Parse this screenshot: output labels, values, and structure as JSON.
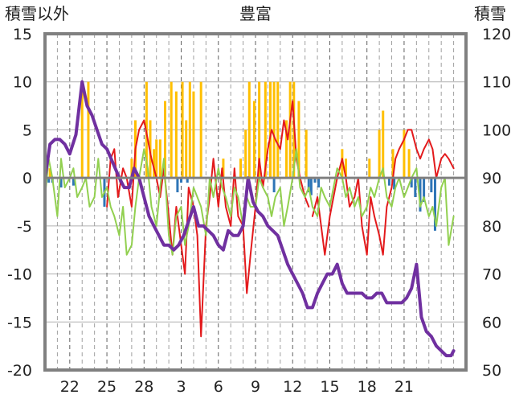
{
  "chart_data": {
    "type": "line",
    "title": "豊富",
    "left_axis_label": "積雪以外",
    "right_axis_label": "積雪",
    "left_axis": {
      "range": [
        -20,
        15
      ],
      "ticks": [
        "15",
        "10",
        "5",
        "0",
        "-5",
        "-10",
        "-15",
        "-20"
      ]
    },
    "right_axis": {
      "range": [
        50,
        120
      ],
      "ticks": [
        "120",
        "110",
        "100",
        "90",
        "80",
        "70",
        "60",
        "50"
      ]
    },
    "x_range": [
      20,
      54
    ],
    "x_ticks": [
      {
        "x": 22,
        "label": "22"
      },
      {
        "x": 25,
        "label": "25"
      },
      {
        "x": 28,
        "label": "28"
      },
      {
        "x": 31,
        "label": "3"
      },
      {
        "x": 34,
        "label": "6"
      },
      {
        "x": 37,
        "label": "9"
      },
      {
        "x": 40,
        "label": "12"
      },
      {
        "x": 43,
        "label": "15"
      },
      {
        "x": 46,
        "label": "18"
      },
      {
        "x": 49,
        "label": "21"
      }
    ],
    "x_grid_minor": [
      21,
      23,
      24,
      26,
      27,
      29,
      30,
      32,
      33,
      35,
      36,
      38,
      39,
      41,
      42,
      44,
      45,
      47,
      48,
      50,
      51,
      52,
      53
    ],
    "x_grid_major": [
      22,
      25,
      28,
      31,
      34,
      37,
      40,
      43,
      46,
      49
    ],
    "grid": true,
    "colors": {
      "snowfall": "#ffbf00",
      "precip": "#2e75b6",
      "max_temp": "#e31a1c",
      "min_temp": "#92d050",
      "snow_depth": "#7030a0",
      "zero_line": "#808080",
      "frame": "#808080"
    },
    "series": [
      {
        "key": "snowfall",
        "kind": "bars",
        "axis": "left",
        "x": [
          20.4,
          23.0,
          23.5,
          27.0,
          27.3,
          28.2,
          28.5,
          28.8,
          29.0,
          29.3,
          29.7,
          30.2,
          30.6,
          31.1,
          31.4,
          31.7,
          32.0,
          32.6,
          34.4,
          35.8,
          36.2,
          36.5,
          36.9,
          37.3,
          37.8,
          38.2,
          38.5,
          38.8,
          39.5,
          39.8,
          40.1,
          40.5,
          41.1,
          44.0,
          44.3,
          46.2,
          47.0,
          47.3,
          48.1,
          49.0,
          49.4
        ],
        "values": [
          1,
          10,
          10,
          2,
          6,
          10,
          6,
          3,
          4,
          4,
          8,
          10,
          9,
          10,
          6,
          10,
          9,
          10,
          2,
          2,
          5,
          10,
          8,
          10,
          10,
          10,
          10,
          10,
          6,
          10,
          10,
          8,
          5,
          3,
          2,
          2,
          5,
          7,
          3,
          5,
          3
        ]
      },
      {
        "key": "precip",
        "kind": "bars",
        "axis": "left",
        "x": [
          20.3,
          20.6,
          21.3,
          22.3,
          24.8,
          30.7,
          31.0,
          31.5,
          38.5,
          41.3,
          41.5,
          41.8,
          42.1,
          47.8,
          48.2,
          49.6,
          49.9,
          50.3,
          50.6,
          51.2,
          51.5
        ],
        "values": [
          -0.5,
          -0.5,
          -1.0,
          -0.8,
          -3.0,
          -1.5,
          -0.5,
          -0.5,
          -1.5,
          -1.5,
          -1.8,
          -0.5,
          -1.0,
          -0.8,
          -1.2,
          -1.0,
          -2.0,
          -3.5,
          -2.5,
          -1.5,
          -5.5
        ]
      },
      {
        "key": "max_temp",
        "kind": "line",
        "axis": "left",
        "x": [
          25.0,
          25.3,
          25.6,
          25.9,
          26.3,
          26.6,
          27.0,
          27.3,
          27.6,
          28.0,
          28.3,
          28.6,
          29.0,
          29.3,
          29.6,
          30.0,
          30.3,
          30.6,
          31.0,
          31.3,
          31.6,
          32.0,
          32.3,
          32.6,
          33.0,
          33.3,
          33.6,
          34.0,
          34.3,
          34.6,
          35.0,
          35.3,
          35.6,
          36.0,
          36.3,
          36.6,
          37.0,
          37.3,
          37.6,
          38.0,
          38.3,
          38.6,
          39.0,
          39.3,
          39.6,
          40.0,
          40.3,
          40.6,
          41.0,
          41.3,
          41.6,
          42.0,
          42.3,
          42.6,
          43.0,
          43.3,
          43.6,
          44.0,
          44.3,
          44.6,
          45.0,
          45.3,
          45.6,
          46.0,
          46.3,
          46.6,
          47.0,
          47.3,
          47.6,
          48.0,
          48.3,
          48.6,
          49.0,
          49.3,
          49.6,
          50.0,
          50.3,
          50.6,
          51.0,
          51.3,
          51.6,
          52.0,
          52.3,
          52.6,
          53.0
        ],
        "values": [
          -3,
          2,
          3,
          -2,
          1,
          0,
          -3,
          3,
          5,
          6,
          4,
          2,
          0,
          -2,
          1,
          -4,
          -8,
          -3,
          -7,
          -10,
          -1,
          -3,
          -6,
          -16.5,
          -5,
          -2,
          2,
          -3,
          1,
          -3,
          -5,
          1,
          -4,
          -5,
          -12,
          -8,
          -3,
          2,
          -1,
          3,
          5,
          4,
          3,
          6,
          4,
          8,
          2,
          0,
          -2,
          -3,
          -4,
          -2,
          -5,
          -8,
          -4,
          -2,
          0,
          2,
          0,
          -3,
          -2,
          0,
          -5,
          -8,
          -2,
          -4,
          -6,
          -8,
          -3,
          -1,
          2,
          3,
          4,
          5,
          5,
          3,
          2,
          3,
          4,
          3,
          0,
          2,
          2.5,
          2,
          1
        ],
        "gaps_after_index": [
          49
        ]
      },
      {
        "key": "min_temp",
        "kind": "line",
        "axis": "left",
        "x": [
          20.0,
          20.3,
          20.6,
          21.0,
          21.3,
          21.6,
          22.0,
          22.3,
          22.6,
          23.0,
          23.3,
          23.6,
          24.0,
          24.3,
          24.6,
          25.0,
          25.3,
          25.6,
          26.0,
          26.3,
          26.6,
          27.0,
          27.3,
          27.6,
          28.0,
          28.3,
          28.6,
          29.0,
          29.3,
          29.6,
          30.0,
          30.3,
          30.6,
          31.0,
          31.3,
          31.6,
          32.0,
          32.3,
          32.6,
          33.0,
          33.3,
          33.6,
          34.0,
          34.3,
          34.6,
          35.0,
          35.3,
          35.6,
          36.0,
          36.3,
          36.6,
          37.0,
          37.3,
          37.6,
          38.0,
          38.3,
          38.6,
          39.0,
          39.3,
          39.6,
          40.0,
          40.3,
          40.6,
          41.0,
          41.3,
          41.6,
          42.0,
          42.3,
          42.6,
          43.0,
          43.3,
          43.6,
          44.0,
          44.3,
          44.6,
          45.0,
          45.3,
          45.6,
          46.0,
          46.3,
          46.6,
          47.0,
          47.3,
          47.6,
          48.0,
          48.3,
          48.6,
          49.0,
          49.3,
          49.6,
          50.0,
          50.3,
          50.6,
          51.0,
          51.3,
          51.6,
          52.0,
          52.3,
          52.6,
          53.0
        ],
        "values": [
          -2,
          2,
          0,
          -4,
          2,
          -1,
          0,
          1,
          -2,
          -1,
          0,
          -3,
          -2,
          2,
          -2,
          -1,
          -3,
          -4,
          -6,
          -3,
          -8,
          -7,
          -3,
          0,
          3,
          1,
          -3,
          -5,
          -1,
          2,
          -6,
          -8,
          -4,
          -3,
          -7,
          -5,
          -1,
          -2,
          -3,
          -6,
          0,
          -2,
          1,
          -1,
          -2,
          -4,
          -1,
          -2,
          -5,
          -2,
          -3,
          -3,
          0,
          -1,
          -2,
          -4,
          -2,
          -1,
          -5,
          -3,
          0,
          3,
          -1,
          -2,
          -1,
          -3,
          -4,
          -1,
          -2,
          -3,
          -1,
          1,
          0,
          -2,
          -1,
          -3,
          -2,
          -4,
          -3,
          -1,
          -2,
          0,
          1,
          -2,
          -3,
          -1,
          0,
          -2,
          -1,
          0,
          1,
          -3,
          -2,
          -4,
          -3,
          -5,
          -1,
          0,
          -7,
          -4
        ],
        "gaps_after_index": []
      },
      {
        "key": "snow_depth",
        "kind": "line",
        "axis": "right",
        "x": [
          20.0,
          20.4,
          20.8,
          21.2,
          21.6,
          22.0,
          22.5,
          23.0,
          23.4,
          23.8,
          24.2,
          24.6,
          25.0,
          25.5,
          26.0,
          26.4,
          26.8,
          27.2,
          27.6,
          28.0,
          28.4,
          28.8,
          29.2,
          29.6,
          30.0,
          30.4,
          30.8,
          31.2,
          31.6,
          32.0,
          32.4,
          32.8,
          33.2,
          33.6,
          34.0,
          34.4,
          34.8,
          35.2,
          35.6,
          36.0,
          36.4,
          36.8,
          37.2,
          37.6,
          38.0,
          38.4,
          38.8,
          39.2,
          39.6,
          40.0,
          40.4,
          40.8,
          41.2,
          41.6,
          42.0,
          42.4,
          42.8,
          43.2,
          43.6,
          44.0,
          44.4,
          44.8,
          45.2,
          45.6,
          46.0,
          46.4,
          46.8,
          47.2,
          47.6,
          48.0,
          48.4,
          48.8,
          49.2,
          49.6,
          50.0,
          50.4,
          50.8,
          51.2,
          51.6,
          52.0,
          52.4,
          52.8,
          53.0
        ],
        "values": [
          90,
          97,
          98,
          98,
          97,
          95,
          99,
          110,
          105,
          103,
          100,
          97,
          96,
          93,
          90,
          88,
          88,
          92,
          90,
          86,
          82,
          80,
          78,
          76,
          76,
          75,
          76,
          78,
          81,
          84,
          80,
          80,
          79,
          78,
          76,
          75,
          79,
          78,
          78,
          80,
          90,
          85,
          83,
          82,
          80,
          79,
          78,
          75,
          72,
          70,
          68,
          66,
          63,
          63,
          66,
          68,
          70,
          70,
          72,
          68,
          66,
          66,
          66,
          66,
          65,
          65,
          66,
          66,
          64,
          64,
          64,
          64,
          65,
          67,
          72,
          61,
          58,
          57,
          55,
          54,
          53,
          53,
          54
        ],
        "gaps_after_index": []
      }
    ]
  }
}
